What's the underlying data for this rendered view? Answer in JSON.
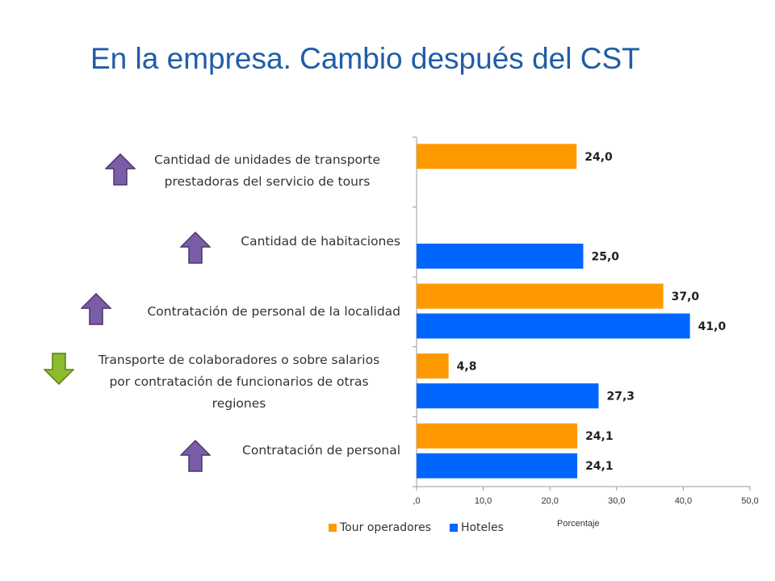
{
  "title": "En la empresa. Cambio después del CST",
  "chart_data": {
    "type": "bar",
    "orientation": "horizontal",
    "categories": [
      "Cantidad de unidades de transporte prestadoras del servicio de tours",
      "Cantidad de habitaciones",
      "Contratación de personal de la localidad",
      "Transporte de colaboradores o sobre salarios por contratación de funcionarios de otras regiones",
      "Contratación de personal"
    ],
    "category_lines": [
      [
        "Cantidad de unidades de transporte",
        "prestadoras del servicio de tours"
      ],
      [
        "Cantidad de habitaciones"
      ],
      [
        "Contratación de personal de la localidad"
      ],
      [
        "Transporte de colaboradores o sobre salarios",
        "por contratación de funcionarios de otras",
        "regiones"
      ],
      [
        "Contratación de personal"
      ]
    ],
    "trend_icons": [
      "arrow-up-icon",
      "arrow-up-icon",
      "arrow-up-icon",
      "arrow-down-icon",
      "arrow-up-icon"
    ],
    "series": [
      {
        "name": "Tour operadores",
        "color": "#ff9900",
        "values": [
          24.0,
          null,
          37.0,
          4.8,
          24.1
        ],
        "labels": [
          "24,0",
          "",
          "37,0",
          "4,8",
          "24,1"
        ]
      },
      {
        "name": "Hoteles",
        "color": "#0066ff",
        "values": [
          null,
          25.0,
          41.0,
          27.3,
          24.1
        ],
        "labels": [
          "",
          "25,0",
          "41,0",
          "27,3",
          "24,1"
        ]
      }
    ],
    "xlim": [
      0,
      50
    ],
    "xticks": [
      0,
      10,
      20,
      30,
      40,
      50
    ],
    "xtick_labels": [
      ",0",
      "10,0",
      "20,0",
      "30,0",
      "40,0",
      "50,0"
    ],
    "xlabel": "Porcentaje",
    "legend_position": "bottom",
    "grid": false
  }
}
